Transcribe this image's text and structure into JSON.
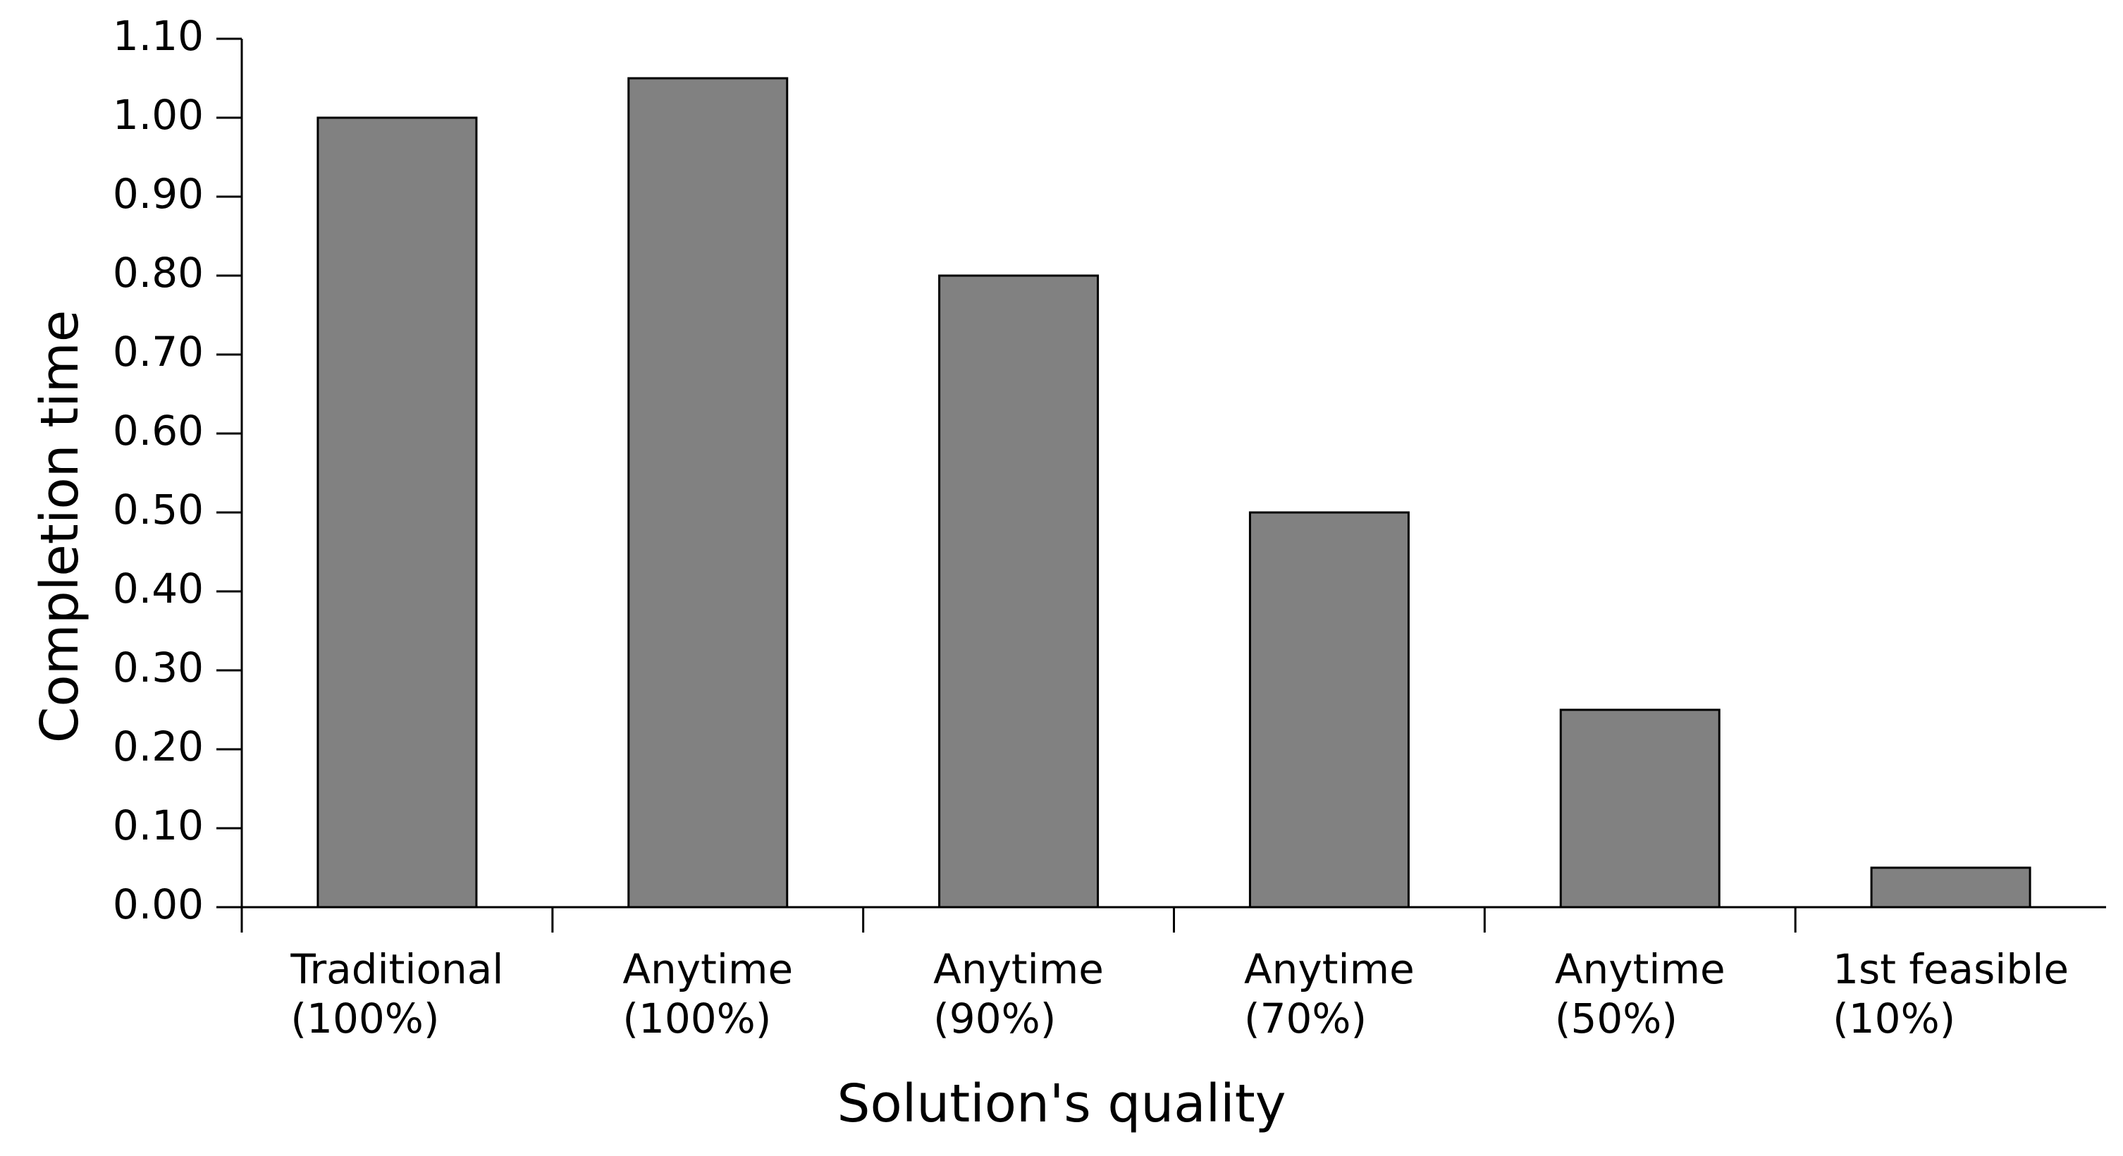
{
  "chart_data": {
    "type": "bar",
    "title": "",
    "xlabel": "Solution's quality",
    "ylabel": "Completion time",
    "categories": [
      "Traditional (100%)",
      "Anytime (100%)",
      "Anytime (90%)",
      "Anytime (70%)",
      "Anytime (50%)",
      "1st feasible (10%)"
    ],
    "category_lines": [
      [
        "Traditional",
        "(100%)"
      ],
      [
        "Anytime",
        "(100%)"
      ],
      [
        "Anytime",
        "(90%)"
      ],
      [
        "Anytime",
        "(70%)"
      ],
      [
        "Anytime",
        "(50%)"
      ],
      [
        "1st feasible",
        "(10%)"
      ]
    ],
    "values": [
      1.0,
      1.05,
      0.8,
      0.5,
      0.25,
      0.05
    ],
    "ylim": [
      0.0,
      1.1
    ],
    "ytick_step": 0.1,
    "ytick_labels": [
      "0.00",
      "0.10",
      "0.20",
      "0.30",
      "0.40",
      "0.50",
      "0.60",
      "0.70",
      "0.80",
      "0.90",
      "1.00",
      "1.10"
    ],
    "grid": "off",
    "legend": "none",
    "colors": {
      "bar_fill": "#818181",
      "bar_edge": "#000000",
      "axis": "#000000",
      "text": "#000000",
      "background": "#ffffff"
    }
  }
}
